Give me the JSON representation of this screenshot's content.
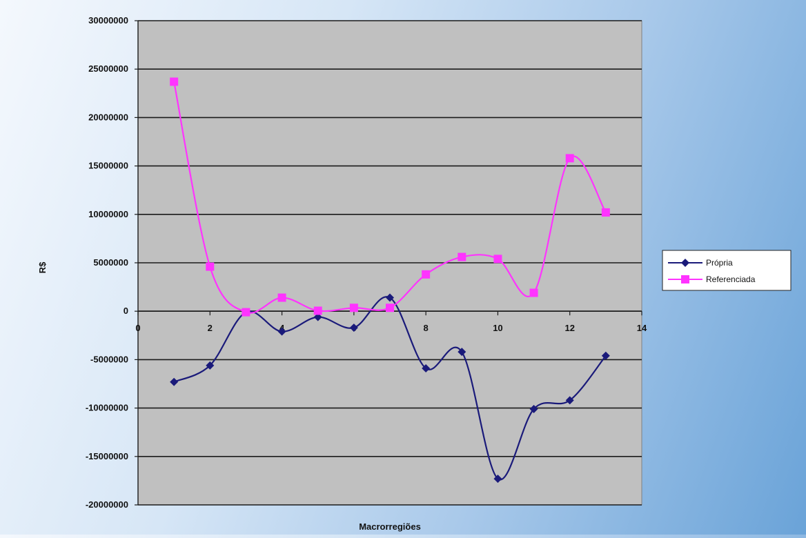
{
  "chart_data": {
    "type": "line",
    "xlabel": "Macrorregiões",
    "ylabel": "R$",
    "xlim": [
      0,
      14
    ],
    "ylim": [
      -20000000,
      30000000
    ],
    "x_ticks": [
      "0",
      "2",
      "4",
      "6",
      "8",
      "10",
      "12",
      "14"
    ],
    "y_ticks": [
      "30000000",
      "25000000",
      "20000000",
      "15000000",
      "10000000",
      "5000000",
      "0",
      "-5000000",
      "-10000000",
      "-15000000",
      "-20000000"
    ],
    "grid": true,
    "smooth": true,
    "legend_position": "right",
    "x": [
      1,
      2,
      3,
      4,
      5,
      6,
      7,
      8,
      9,
      10,
      11,
      12,
      13
    ],
    "series": [
      {
        "name": "Própria",
        "color": "#1a1a7a",
        "marker": "diamond",
        "values": [
          -7300000,
          -5600000,
          -100000,
          -2100000,
          -600000,
          -1700000,
          1400000,
          -5900000,
          -4200000,
          -17300000,
          -10100000,
          -9200000,
          -4600000
        ]
      },
      {
        "name": "Referenciada",
        "color": "#ff33ff",
        "marker": "square",
        "values": [
          23700000,
          4600000,
          -100000,
          1400000,
          50000,
          350000,
          350000,
          3800000,
          5600000,
          5400000,
          1900000,
          15800000,
          10200000
        ]
      }
    ]
  }
}
